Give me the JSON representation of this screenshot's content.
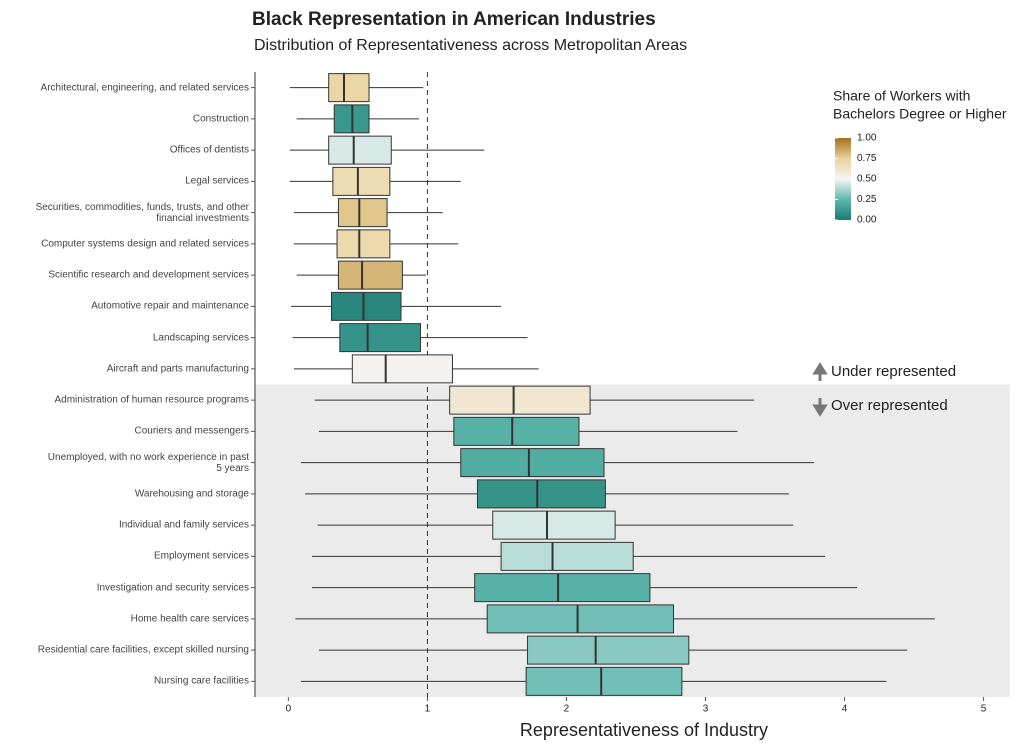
{
  "chart_data": {
    "type": "box",
    "title": "Black Representation in American Industries",
    "subtitle": "Distribution of Representativeness across Metropolitan Areas",
    "x_label": "Representativeness of Industry",
    "categories": [
      "Architectural, engineering, and related services",
      "Construction",
      "Offices of dentists",
      "Legal services",
      "Securities, commodities, funds, trusts, and other\nfinancial investments",
      "Computer systems design and related services",
      "Scientific research and development services",
      "Automotive repair and maintenance",
      "Landscaping services",
      "Aircraft and parts manufacturing",
      "Administration of human resource programs",
      "Couriers and messengers",
      "Unemployed, with no work experience in past\n5 years",
      "Warehousing and storage",
      "Individual and family services",
      "Employment services",
      "Investigation and security services",
      "Home health care services",
      "Residential care facilities, except skilled nursing",
      "Nursing care facilities"
    ],
    "whisker_low": [
      0.01,
      0.06,
      0.01,
      0.01,
      0.04,
      0.04,
      0.06,
      0.02,
      0.03,
      0.04,
      0.19,
      0.22,
      0.09,
      0.12,
      0.21,
      0.17,
      0.17,
      0.05,
      0.22,
      0.09
    ],
    "q1": [
      0.29,
      0.33,
      0.29,
      0.32,
      0.36,
      0.35,
      0.36,
      0.31,
      0.37,
      0.46,
      1.16,
      1.19,
      1.24,
      1.36,
      1.47,
      1.53,
      1.34,
      1.43,
      1.72,
      1.71
    ],
    "median": [
      0.4,
      0.46,
      0.47,
      0.5,
      0.51,
      0.51,
      0.53,
      0.54,
      0.57,
      0.7,
      1.62,
      1.61,
      1.73,
      1.79,
      1.86,
      1.9,
      1.94,
      2.08,
      2.21,
      2.25
    ],
    "q3": [
      0.58,
      0.58,
      0.74,
      0.73,
      0.71,
      0.73,
      0.82,
      0.81,
      0.95,
      1.18,
      2.17,
      2.09,
      2.27,
      2.28,
      2.35,
      2.48,
      2.6,
      2.77,
      2.88,
      2.83
    ],
    "whisker_high": [
      0.97,
      0.94,
      1.41,
      1.24,
      1.11,
      1.22,
      0.99,
      1.53,
      1.72,
      1.8,
      3.35,
      3.23,
      3.78,
      3.6,
      3.63,
      3.86,
      4.09,
      4.65,
      4.45,
      4.3
    ],
    "share": [
      0.72,
      0.12,
      0.45,
      0.68,
      0.78,
      0.7,
      0.82,
      0.05,
      0.1,
      0.52,
      0.6,
      0.22,
      0.2,
      0.1,
      0.45,
      0.4,
      0.22,
      0.28,
      0.32,
      0.28
    ],
    "xlim": [
      -0.24,
      5.19
    ],
    "xticks": [
      0,
      1,
      2,
      3,
      4,
      5
    ],
    "reference_line": 1,
    "legend_title": [
      "Share of Workers with",
      "Bachelors Degree or Higher"
    ],
    "colorscale": [
      [
        0,
        "#1a7a70"
      ],
      [
        0.25,
        "#5fb8ae"
      ],
      [
        0.5,
        "#f5f5f5"
      ],
      [
        0.75,
        "#ead29a"
      ],
      [
        1,
        "#a36f1e"
      ]
    ],
    "colorbar_ticks": [
      {
        "value": 1,
        "label": "1.00"
      },
      {
        "value": 0.75,
        "label": "0.75"
      },
      {
        "value": 0.5,
        "label": "0.50"
      },
      {
        "value": 0.25,
        "label": "0.25"
      },
      {
        "value": 0,
        "label": "0.00"
      }
    ],
    "annotations": [
      "Under represented",
      "Over represented"
    ]
  }
}
